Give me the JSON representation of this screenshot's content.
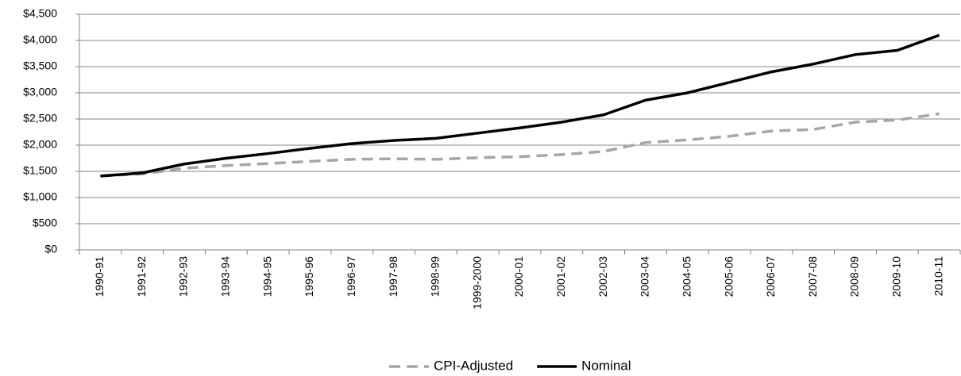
{
  "chart_data": {
    "type": "line",
    "categories": [
      "1990-91",
      "1991-92",
      "1992-93",
      "1993-94",
      "1994-95",
      "1995-96",
      "1996-97",
      "1997-98",
      "1998-99",
      "1999-2000",
      "2000-01",
      "2001-02",
      "2002-03",
      "2003-04",
      "2004-05",
      "2005-06",
      "2006-07",
      "2007-08",
      "2008-09",
      "2009-10",
      "2010-11"
    ],
    "series": [
      {
        "name": "CPI-Adjusted",
        "color": "#a6a6a6",
        "dashed": true,
        "values": [
          1410,
          1450,
          1560,
          1610,
          1650,
          1690,
          1730,
          1740,
          1730,
          1760,
          1780,
          1820,
          1880,
          2050,
          2100,
          2170,
          2270,
          2300,
          2440,
          2480,
          2600
        ]
      },
      {
        "name": "Nominal",
        "color": "#000000",
        "dashed": false,
        "values": [
          1410,
          1470,
          1640,
          1750,
          1840,
          1940,
          2030,
          2090,
          2130,
          2230,
          2330,
          2440,
          2580,
          2860,
          3000,
          3200,
          3400,
          3550,
          3730,
          3810,
          4100
        ]
      }
    ],
    "ylim": [
      0,
      4500
    ],
    "yticks": [
      {
        "value": 0,
        "label": "$0"
      },
      {
        "value": 500,
        "label": "$500"
      },
      {
        "value": 1000,
        "label": "$1,000"
      },
      {
        "value": 1500,
        "label": "$1,500"
      },
      {
        "value": 2000,
        "label": "$2,000"
      },
      {
        "value": 2500,
        "label": "$2,500"
      },
      {
        "value": 3000,
        "label": "$3,000"
      },
      {
        "value": 3500,
        "label": "$3,500"
      },
      {
        "value": 4000,
        "label": "$4,000"
      },
      {
        "value": 4500,
        "label": "$4,500"
      }
    ],
    "grid": true,
    "legend": "bottom"
  }
}
